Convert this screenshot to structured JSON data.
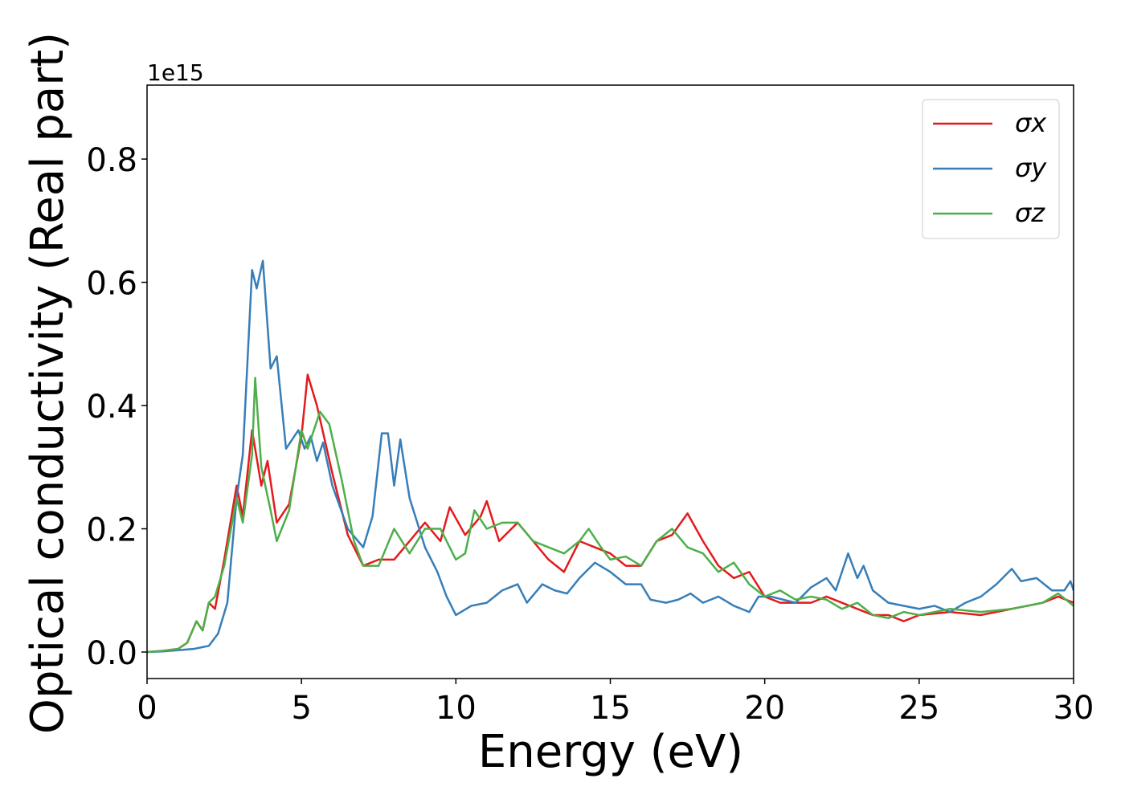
{
  "chart_data": {
    "type": "line",
    "xlabel": "Energy (eV)",
    "ylabel": "Optical conductivity (Real part)",
    "y_offset_text": "1e15",
    "xlim": [
      0,
      30
    ],
    "xticks": [
      0,
      5,
      10,
      15,
      20,
      25,
      30
    ],
    "ylim": [
      -0.043,
      0.92
    ],
    "yticks": [
      {
        "value": 0,
        "label": "0.0"
      },
      0.2,
      0.4,
      0.6,
      0.8
    ],
    "legend": "upper right",
    "series": [
      {
        "name": "σx",
        "color": "#e41a1c",
        "x": [
          0,
          0.5,
          1,
          1.3,
          1.6,
          1.8,
          2,
          2.2,
          2.5,
          2.9,
          3.1,
          3.4,
          3.7,
          3.9,
          4.2,
          4.6,
          5,
          5.2,
          5.5,
          6,
          6.5,
          7,
          7.5,
          8,
          8.5,
          9,
          9.5,
          9.8,
          10.3,
          10.8,
          11,
          11.4,
          12,
          12.5,
          13,
          13.5,
          14,
          14.5,
          15,
          15.5,
          16,
          16.5,
          17,
          17.5,
          18,
          18.5,
          19,
          19.5,
          20,
          20.5,
          21,
          21.5,
          22,
          23,
          23.5,
          24,
          24.5,
          25,
          26,
          27,
          28,
          29,
          29.5,
          30
        ],
        "values": [
          0,
          0.002,
          0.005,
          0.015,
          0.05,
          0.035,
          0.08,
          0.07,
          0.15,
          0.27,
          0.22,
          0.36,
          0.27,
          0.31,
          0.21,
          0.24,
          0.35,
          0.45,
          0.4,
          0.29,
          0.19,
          0.14,
          0.15,
          0.15,
          0.18,
          0.21,
          0.18,
          0.235,
          0.19,
          0.22,
          0.245,
          0.18,
          0.21,
          0.18,
          0.15,
          0.13,
          0.18,
          0.17,
          0.16,
          0.14,
          0.14,
          0.18,
          0.19,
          0.225,
          0.18,
          0.14,
          0.12,
          0.13,
          0.09,
          0.08,
          0.08,
          0.08,
          0.09,
          0.07,
          0.06,
          0.06,
          0.05,
          0.06,
          0.065,
          0.06,
          0.07,
          0.08,
          0.09,
          0.08
        ]
      },
      {
        "name": "σy",
        "color": "#377eb8",
        "x": [
          0,
          0.5,
          1,
          1.5,
          2,
          2.3,
          2.6,
          2.9,
          3.1,
          3.4,
          3.55,
          3.75,
          4,
          4.2,
          4.5,
          4.9,
          5.1,
          5.3,
          5.5,
          5.7,
          6,
          6.5,
          7,
          7.3,
          7.6,
          7.8,
          8,
          8.2,
          8.5,
          9,
          9.4,
          9.7,
          10,
          10.5,
          11,
          11.5,
          12,
          12.3,
          12.8,
          13.2,
          13.6,
          14,
          14.5,
          15,
          15.5,
          16,
          16.3,
          16.8,
          17.2,
          17.6,
          18,
          18.5,
          19,
          19.5,
          19.8,
          20.2,
          21,
          21.5,
          22,
          22.3,
          22.7,
          23,
          23.2,
          23.5,
          24,
          25,
          25.5,
          26,
          26.5,
          27,
          27.5,
          28,
          28.3,
          28.8,
          29.3,
          29.7,
          29.9,
          30
        ],
        "values": [
          0,
          0.001,
          0.003,
          0.005,
          0.01,
          0.03,
          0.08,
          0.25,
          0.32,
          0.62,
          0.59,
          0.635,
          0.46,
          0.48,
          0.33,
          0.36,
          0.33,
          0.35,
          0.31,
          0.34,
          0.27,
          0.2,
          0.17,
          0.22,
          0.355,
          0.355,
          0.27,
          0.345,
          0.25,
          0.17,
          0.13,
          0.09,
          0.06,
          0.075,
          0.08,
          0.1,
          0.11,
          0.08,
          0.11,
          0.1,
          0.095,
          0.12,
          0.145,
          0.13,
          0.11,
          0.11,
          0.085,
          0.08,
          0.085,
          0.095,
          0.08,
          0.09,
          0.075,
          0.065,
          0.09,
          0.09,
          0.08,
          0.105,
          0.12,
          0.1,
          0.16,
          0.12,
          0.14,
          0.1,
          0.08,
          0.07,
          0.075,
          0.065,
          0.08,
          0.09,
          0.11,
          0.135,
          0.115,
          0.12,
          0.1,
          0.1,
          0.115,
          0.1
        ]
      },
      {
        "name": "σz",
        "color": "#4daf4a",
        "x": [
          0,
          0.5,
          1,
          1.3,
          1.6,
          1.8,
          2,
          2.2,
          2.5,
          2.9,
          3.1,
          3.4,
          3.5,
          3.7,
          4,
          4.2,
          4.6,
          5,
          5.2,
          5.6,
          5.9,
          6.3,
          6.7,
          7,
          7.5,
          8,
          8.5,
          9,
          9.5,
          10,
          10.3,
          10.6,
          11,
          11.5,
          12,
          12.5,
          13,
          13.5,
          14,
          14.3,
          14.7,
          15,
          15.5,
          16,
          16.5,
          17,
          17.5,
          18,
          18.5,
          19,
          19.5,
          20,
          20.5,
          21,
          21.5,
          22,
          22.5,
          23,
          23.5,
          24,
          24.5,
          25,
          26,
          27,
          28,
          29,
          29.5,
          30
        ],
        "values": [
          0,
          0.002,
          0.005,
          0.015,
          0.05,
          0.035,
          0.08,
          0.09,
          0.14,
          0.25,
          0.21,
          0.32,
          0.445,
          0.3,
          0.23,
          0.18,
          0.23,
          0.36,
          0.33,
          0.39,
          0.37,
          0.28,
          0.18,
          0.14,
          0.14,
          0.2,
          0.16,
          0.2,
          0.2,
          0.15,
          0.16,
          0.23,
          0.2,
          0.21,
          0.21,
          0.18,
          0.17,
          0.16,
          0.18,
          0.2,
          0.17,
          0.15,
          0.155,
          0.14,
          0.18,
          0.2,
          0.17,
          0.16,
          0.13,
          0.145,
          0.11,
          0.09,
          0.1,
          0.085,
          0.09,
          0.085,
          0.07,
          0.08,
          0.06,
          0.055,
          0.065,
          0.06,
          0.07,
          0.065,
          0.07,
          0.08,
          0.095,
          0.075
        ]
      }
    ]
  }
}
